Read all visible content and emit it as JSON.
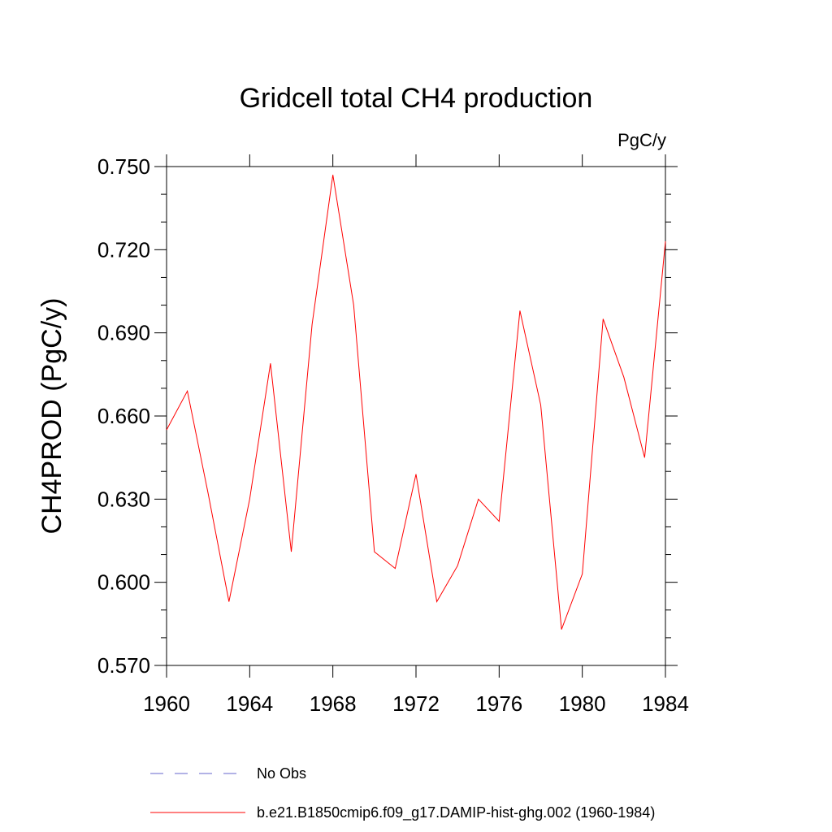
{
  "chart_data": {
    "type": "line",
    "title": "Gridcell total CH4 production",
    "units_label": "PgC/y",
    "ylabel": "CH4PROD  (PgC/y)",
    "xlabel": "",
    "xlim": [
      1960,
      1984
    ],
    "ylim": [
      0.57,
      0.75
    ],
    "x_ticks": [
      1960,
      1964,
      1968,
      1972,
      1976,
      1980,
      1984
    ],
    "x_tick_labels": [
      "1960",
      "1964",
      "1968",
      "1972",
      "1976",
      "1980",
      "1984"
    ],
    "y_ticks": [
      0.57,
      0.6,
      0.63,
      0.66,
      0.69,
      0.72,
      0.75
    ],
    "y_tick_labels": [
      "0.570",
      "0.600",
      "0.630",
      "0.660",
      "0.690",
      "0.720",
      "0.750"
    ],
    "y_minor_step": 0.01,
    "x": [
      1960,
      1961,
      1962,
      1963,
      1964,
      1965,
      1966,
      1967,
      1968,
      1969,
      1970,
      1971,
      1972,
      1973,
      1974,
      1975,
      1976,
      1977,
      1978,
      1979,
      1980,
      1981,
      1982,
      1983,
      1984
    ],
    "series": [
      {
        "name": "b.e21.B1850cmip6.f09_g17.DAMIP-hist-ghg.002 (1960-1984)",
        "color": "#ff0000",
        "values": [
          0.655,
          0.669,
          0.632,
          0.593,
          0.63,
          0.679,
          0.611,
          0.693,
          0.747,
          0.7,
          0.611,
          0.605,
          0.639,
          0.593,
          0.606,
          0.63,
          0.622,
          0.698,
          0.664,
          0.583,
          0.603,
          0.695,
          0.674,
          0.645,
          0.723
        ]
      }
    ],
    "legend": [
      {
        "label": "No Obs",
        "color": "#6666cc",
        "style": "dashed"
      },
      {
        "label": "b.e21.B1850cmip6.f09_g17.DAMIP-hist-ghg.002 (1960-1984)",
        "color": "#ff0000",
        "style": "solid"
      }
    ],
    "legend_position": "bottom",
    "grid": false
  }
}
